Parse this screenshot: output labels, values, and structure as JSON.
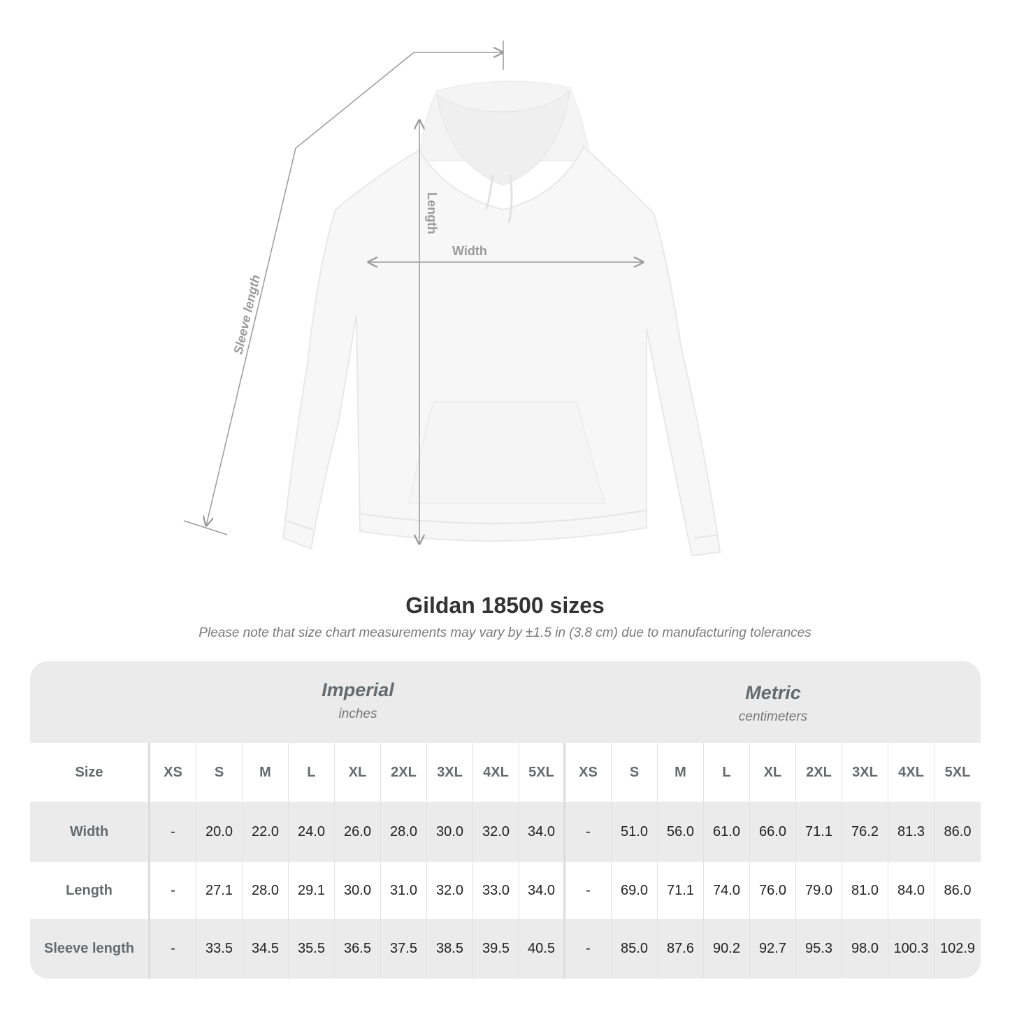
{
  "diagram": {
    "labels": {
      "length": "Length",
      "width": "Width",
      "sleeve": "Sleeve length"
    },
    "garment_color": "#f7f7f7",
    "line_color": "#9a9a9a"
  },
  "title": "Gildan 18500 sizes",
  "subtitle": "Please note that size chart measurements may vary by ±1.5 in (3.8 cm) due to manufacturing tolerances",
  "table": {
    "imperial": {
      "title": "Imperial",
      "unit": "inches"
    },
    "metric": {
      "title": "Metric",
      "unit": "centimeters"
    },
    "size_label": "Size",
    "sizes": [
      "XS",
      "S",
      "M",
      "L",
      "XL",
      "2XL",
      "3XL",
      "4XL",
      "5XL"
    ],
    "rows": [
      {
        "label": "Width",
        "imperial": [
          "-",
          "20.0",
          "22.0",
          "24.0",
          "26.0",
          "28.0",
          "30.0",
          "32.0",
          "34.0"
        ],
        "metric": [
          "-",
          "51.0",
          "56.0",
          "61.0",
          "66.0",
          "71.1",
          "76.2",
          "81.3",
          "86.0"
        ]
      },
      {
        "label": "Length",
        "imperial": [
          "-",
          "27.1",
          "28.0",
          "29.1",
          "30.0",
          "31.0",
          "32.0",
          "33.0",
          "34.0"
        ],
        "metric": [
          "-",
          "69.0",
          "71.1",
          "74.0",
          "76.0",
          "79.0",
          "81.0",
          "84.0",
          "86.0"
        ]
      },
      {
        "label": "Sleeve length",
        "imperial": [
          "-",
          "33.5",
          "34.5",
          "35.5",
          "36.5",
          "37.5",
          "38.5",
          "39.5",
          "40.5"
        ],
        "metric": [
          "-",
          "85.0",
          "87.6",
          "90.2",
          "92.7",
          "95.3",
          "98.0",
          "100.3",
          "102.9"
        ]
      }
    ]
  }
}
